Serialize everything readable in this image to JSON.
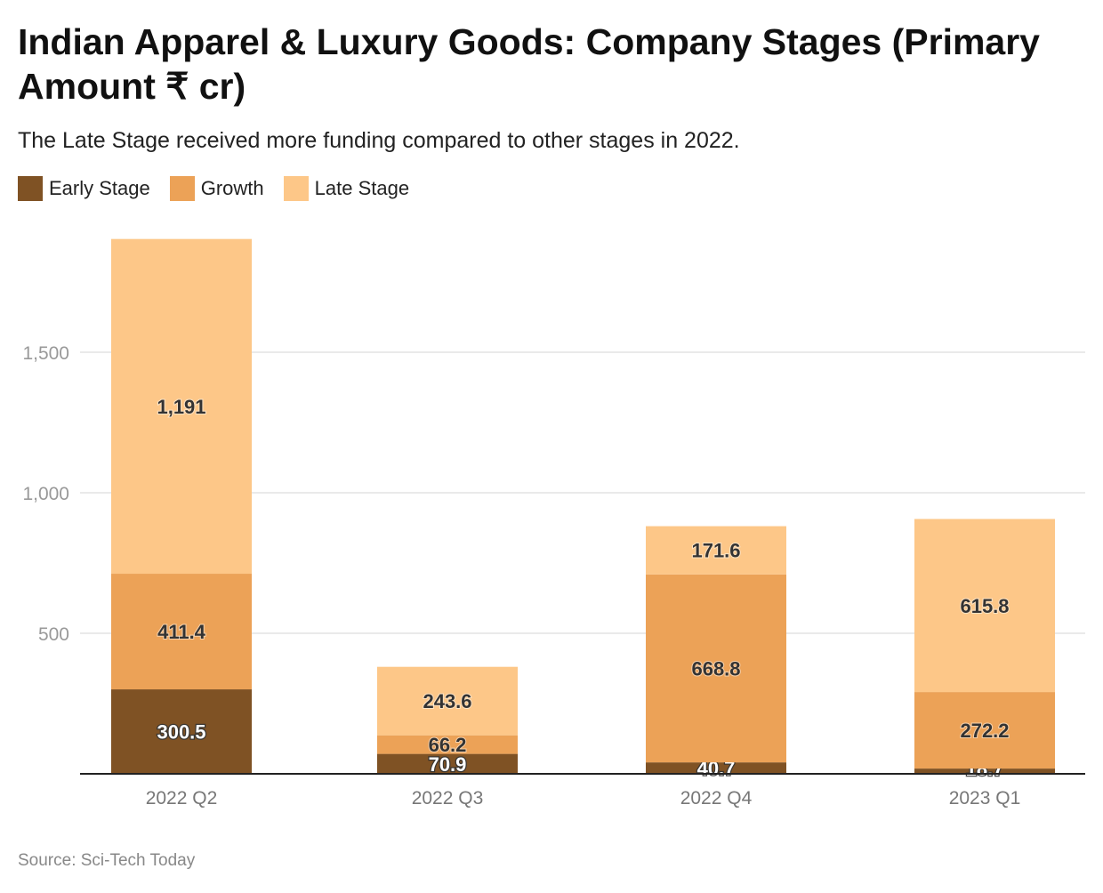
{
  "title": "Indian Apparel & Luxury Goods: Company Stages (Primary Amount ₹ cr)",
  "subtitle": "The Late Stage received more funding compared to other stages in 2022.",
  "source": "Source: Sci-Tech Today",
  "chart_data": {
    "type": "bar",
    "stacked": true,
    "categories": [
      "2022 Q2",
      "2022 Q3",
      "2022 Q4",
      "2023 Q1"
    ],
    "series": [
      {
        "name": "Early Stage",
        "color": "#7f5224",
        "values": [
          300.5,
          70.9,
          40.7,
          18.7
        ],
        "labels": [
          "300.5",
          "70.9",
          "40.7",
          "18.7"
        ]
      },
      {
        "name": "Growth",
        "color": "#eca257",
        "values": [
          411.4,
          66.2,
          668.8,
          272.2
        ],
        "labels": [
          "411.4",
          "66.2",
          "668.8",
          "272.2"
        ]
      },
      {
        "name": "Late Stage",
        "color": "#fdc788",
        "values": [
          1191,
          243.6,
          171.6,
          615.8
        ],
        "labels": [
          "1,191",
          "243.6",
          "171.6",
          "615.8"
        ]
      }
    ],
    "yticks": [
      500,
      1000,
      1500
    ],
    "ytick_labels": [
      "500",
      "1,000",
      "1,500"
    ],
    "ylim": [
      0,
      1900
    ],
    "grid": true,
    "legend": "top-left"
  }
}
